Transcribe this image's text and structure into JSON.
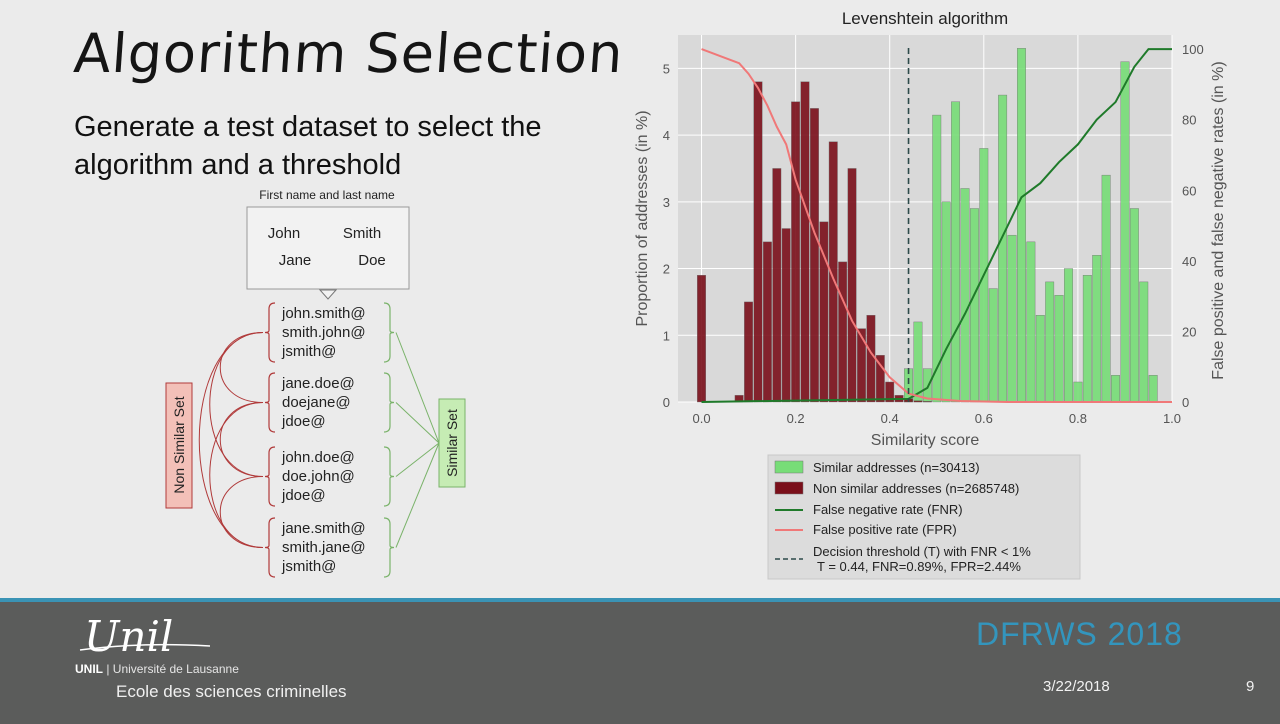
{
  "slide": {
    "title": "Algorithm Selection",
    "subtitle": "Generate a test dataset to select the algorithm and a threshold"
  },
  "diagram": {
    "box_label": "First name and last name",
    "names": [
      "John",
      "Smith",
      "Jane",
      "Doe"
    ],
    "groups": [
      [
        "john.smith@",
        "smith.john@",
        "jsmith@"
      ],
      [
        "jane.doe@",
        "doejane@",
        "jdoe@"
      ],
      [
        "john.doe@",
        "doe.john@",
        "jdoe@"
      ],
      [
        "jane.smith@",
        "smith.jane@",
        "jsmith@"
      ]
    ],
    "non_similar_label": "Non Similar Set",
    "similar_label": "Similar Set",
    "colors": {
      "non_similar": "#b03a3a",
      "similar": "#7ab36a"
    }
  },
  "chart_data": {
    "type": "bar",
    "title": "Levenshtein algorithm",
    "xlabel": "Similarity score",
    "ylabel": "Proportion of addresses (in %)",
    "ylabel_right": "False positive and false negative rates (in %)",
    "xlim": [
      -0.05,
      1.0
    ],
    "ylim": [
      0,
      5.5
    ],
    "ylim_right": [
      0,
      104
    ],
    "xticks": [
      "0.0",
      "0.2",
      "0.4",
      "0.6",
      "0.8",
      "1.0"
    ],
    "yticks": [
      "0",
      "1",
      "2",
      "3",
      "4",
      "5"
    ],
    "yticks_right": [
      "0",
      "20",
      "40",
      "60",
      "80",
      "100"
    ],
    "grid": true,
    "bin_width": 0.02,
    "series": [
      {
        "name": "Similar addresses (n=30413)",
        "kind": "bar",
        "color": "#77dd77",
        "x": [
          0.44,
          0.46,
          0.48,
          0.5,
          0.52,
          0.54,
          0.56,
          0.58,
          0.6,
          0.62,
          0.64,
          0.66,
          0.68,
          0.7,
          0.72,
          0.74,
          0.76,
          0.78,
          0.8,
          0.82,
          0.84,
          0.86,
          0.88,
          0.9,
          0.92,
          0.94,
          0.96
        ],
        "values": [
          0.5,
          1.2,
          0.5,
          4.3,
          3.0,
          4.5,
          3.2,
          2.9,
          3.8,
          1.7,
          4.6,
          2.5,
          5.3,
          2.4,
          1.3,
          1.8,
          1.6,
          2.0,
          0.3,
          1.9,
          2.2,
          3.4,
          0.4,
          5.1,
          2.9,
          1.8,
          0.4
        ]
      },
      {
        "name": "Non similar addresses (n=2685748)",
        "kind": "bar",
        "color": "#7a0f1a",
        "x": [
          0.0,
          0.08,
          0.1,
          0.12,
          0.14,
          0.16,
          0.18,
          0.2,
          0.22,
          0.24,
          0.26,
          0.28,
          0.3,
          0.32,
          0.34,
          0.36,
          0.38,
          0.4,
          0.42,
          0.44,
          0.46,
          0.48
        ],
        "values": [
          1.9,
          0.1,
          1.5,
          4.8,
          2.4,
          3.5,
          2.6,
          4.5,
          4.8,
          4.4,
          2.7,
          3.9,
          2.1,
          3.5,
          1.1,
          1.3,
          0.7,
          0.3,
          0.1,
          0.05,
          0.02,
          0.01
        ]
      },
      {
        "name": "False negative rate (FNR)",
        "kind": "line",
        "axis": "right",
        "color": "#1f7a2a",
        "x": [
          0.0,
          0.44,
          0.48,
          0.52,
          0.56,
          0.6,
          0.64,
          0.68,
          0.72,
          0.76,
          0.8,
          0.84,
          0.88,
          0.92,
          0.95,
          1.0
        ],
        "values": [
          0,
          0.9,
          4,
          15,
          25,
          36,
          47,
          58,
          62,
          68,
          73,
          80,
          85,
          95,
          100,
          100
        ]
      },
      {
        "name": "False positive rate (FPR)",
        "kind": "line",
        "axis": "right",
        "color": "#f07878",
        "x": [
          0.0,
          0.06,
          0.08,
          0.1,
          0.12,
          0.14,
          0.16,
          0.18,
          0.2,
          0.24,
          0.28,
          0.32,
          0.36,
          0.4,
          0.44,
          0.48,
          0.55,
          0.65,
          1.0
        ],
        "values": [
          100,
          97,
          96,
          93,
          89,
          84,
          78,
          73,
          63,
          48,
          35,
          23,
          14,
          7,
          2.4,
          1,
          0.3,
          0,
          0
        ]
      }
    ],
    "threshold": {
      "name": "Decision threshold (T) with FNR < 1%",
      "detail": "T = 0.44, FNR=0.89%, FPR=2.44%",
      "x": 0.44
    },
    "legend_position": "below"
  },
  "footer": {
    "university_logo": "Unil",
    "university_line_bold": "UNIL",
    "university_line": "| Université de Lausanne",
    "school": "Ecole des sciences criminelles",
    "conference": "DFRWS 2018",
    "date": "3/22/2018",
    "page": "9",
    "colors": {
      "background": "#5b5c5b",
      "accent": "#3a93b5"
    }
  }
}
